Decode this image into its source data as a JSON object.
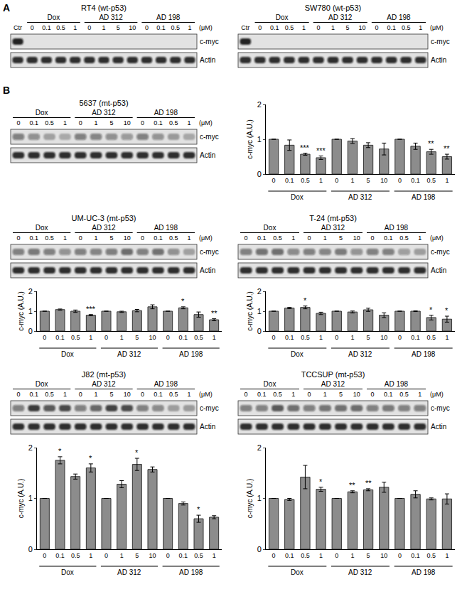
{
  "unit": "(μM)",
  "treatments": [
    {
      "name": "Dox",
      "doses": [
        "0",
        "0.1",
        "0.5",
        "1"
      ]
    },
    {
      "name": "AD 312",
      "doses": [
        "0",
        "1",
        "5",
        "10"
      ]
    },
    {
      "name": "AD 198",
      "doses": [
        "0",
        "0.1",
        "0.5",
        "1"
      ]
    }
  ],
  "panels": [
    {
      "label": "A",
      "blots": [
        {
          "title": "RT4 (wt-p53)",
          "control": "Ctr",
          "rows": [
            "c-myc",
            "Actin"
          ]
        },
        {
          "title": "SW780 (wt-p53)",
          "control": "Ctr",
          "rows": [
            "c-myc",
            "Actin"
          ]
        }
      ]
    },
    {
      "label": "B",
      "blots": [
        {
          "title": "5637 (mt-p53)",
          "rows": [
            "c-myc",
            "Actin"
          ]
        },
        {
          "title": "UM-UC-3 (mt-p53)",
          "rows": [
            "c-myc",
            "Actin"
          ]
        },
        {
          "title": "T-24 (mt-p53)",
          "rows": [
            "c-myc",
            "Actin"
          ]
        },
        {
          "title": "J82 (mt-p53)",
          "rows": [
            "c-myc",
            "Actin"
          ]
        },
        {
          "title": "TCCSUP (mt-p53)",
          "rows": [
            "c-myc",
            "Actin"
          ]
        }
      ]
    }
  ],
  "chart_data": [
    {
      "type": "bar",
      "categories": [
        "0",
        "0.1",
        "0.5",
        "1",
        "0",
        "1",
        "5",
        "10",
        "0",
        "0.1",
        "0.5",
        "1"
      ],
      "groups": [
        "Dox",
        "AD 312",
        "AD 198"
      ],
      "values": [
        1,
        0.83,
        0.57,
        0.47,
        1,
        0.95,
        0.83,
        0.72,
        1,
        0.8,
        0.64,
        0.5
      ],
      "errors": [
        0,
        0.15,
        0.03,
        0.05,
        0,
        0.07,
        0.07,
        0.17,
        0,
        0.09,
        0.07,
        0.07
      ],
      "stars": [
        null,
        null,
        "***",
        "***",
        null,
        null,
        null,
        null,
        null,
        null,
        "**",
        "**"
      ],
      "ylabel": "c-myc (A.U.)",
      "ylim": [
        0,
        2
      ],
      "yticks": [
        0,
        1,
        2
      ],
      "color": "#8c8c8c",
      "grid": false
    },
    {
      "type": "bar",
      "categories": [
        "0",
        "0.1",
        "0.5",
        "1",
        "0",
        "1",
        "5",
        "10",
        "0",
        "0.1",
        "0.5",
        "1"
      ],
      "groups": [
        "Dox",
        "AD 312",
        "AD 198"
      ],
      "values": [
        1,
        1.08,
        1.0,
        0.8,
        1,
        0.97,
        1.03,
        1.22,
        1,
        1.17,
        0.83,
        0.57
      ],
      "errors": [
        0,
        0.03,
        0.06,
        0.03,
        0,
        0.03,
        0.06,
        0.1,
        0,
        0.05,
        0.13,
        0.05
      ],
      "stars": [
        null,
        null,
        null,
        "***",
        null,
        null,
        null,
        null,
        null,
        "*",
        null,
        "**"
      ],
      "ylabel": "c-myc (A.U.)",
      "ylim": [
        0,
        2
      ],
      "yticks": [
        0,
        1,
        2
      ],
      "color": "#8c8c8c",
      "grid": false
    },
    {
      "type": "bar",
      "categories": [
        "0",
        "0.1",
        "0.5",
        "1",
        "0",
        "1",
        "5",
        "10",
        "0",
        "0.1",
        "0.5",
        "1"
      ],
      "groups": [
        "Dox",
        "AD 312",
        "AD 198"
      ],
      "values": [
        1,
        1.16,
        1.19,
        0.89,
        1,
        0.96,
        1.07,
        0.8,
        1,
        1.0,
        0.68,
        0.6
      ],
      "errors": [
        0,
        0.03,
        0.07,
        0.06,
        0,
        0.05,
        0.08,
        0.12,
        0,
        0.02,
        0.12,
        0.15
      ],
      "stars": [
        null,
        null,
        "*",
        null,
        null,
        null,
        null,
        null,
        null,
        null,
        "*",
        "*"
      ],
      "ylabel": "c-myc (A.U.)",
      "ylim": [
        0,
        2
      ],
      "yticks": [
        0,
        1,
        2
      ],
      "color": "#8c8c8c",
      "grid": false
    },
    {
      "type": "bar",
      "categories": [
        "0",
        "0.1",
        "0.5",
        "1",
        "0",
        "1",
        "5",
        "10",
        "0",
        "0.1",
        "0.5",
        "1"
      ],
      "groups": [
        "Dox",
        "AD 312",
        "AD 198"
      ],
      "values": [
        1,
        1.75,
        1.43,
        1.6,
        1,
        1.28,
        1.67,
        1.57,
        1,
        0.9,
        0.6,
        0.63
      ],
      "errors": [
        0,
        0.07,
        0.05,
        0.08,
        0,
        0.07,
        0.12,
        0.05,
        0,
        0.03,
        0.07,
        0.03
      ],
      "stars": [
        null,
        "*",
        null,
        "*",
        null,
        null,
        "*",
        null,
        null,
        null,
        "*",
        null
      ],
      "ylabel": "c-myc (A.U.)",
      "ylim": [
        0,
        2
      ],
      "yticks": [
        0,
        1,
        2
      ],
      "color": "#8c8c8c",
      "grid": false
    },
    {
      "type": "bar",
      "categories": [
        "0",
        "0.1",
        "0.5",
        "1",
        "0",
        "1",
        "5",
        "10",
        "0",
        "0.1",
        "0.5",
        "1"
      ],
      "groups": [
        "Dox",
        "AD 312",
        "AD 198"
      ],
      "values": [
        1,
        0.98,
        1.42,
        1.18,
        1,
        1.13,
        1.17,
        1.22,
        1,
        1.08,
        0.99,
        0.99
      ],
      "errors": [
        0,
        0.02,
        0.23,
        0.04,
        0,
        0.02,
        0.02,
        0.1,
        0,
        0.07,
        0.02,
        0.1
      ],
      "stars": [
        null,
        null,
        null,
        "*",
        null,
        "**",
        "**",
        null,
        null,
        null,
        null,
        null
      ],
      "ylabel": "c-myc (A.U.)",
      "ylim": [
        0,
        2
      ],
      "yticks": [
        0,
        1,
        2
      ],
      "color": "#8c8c8c",
      "grid": false
    }
  ]
}
